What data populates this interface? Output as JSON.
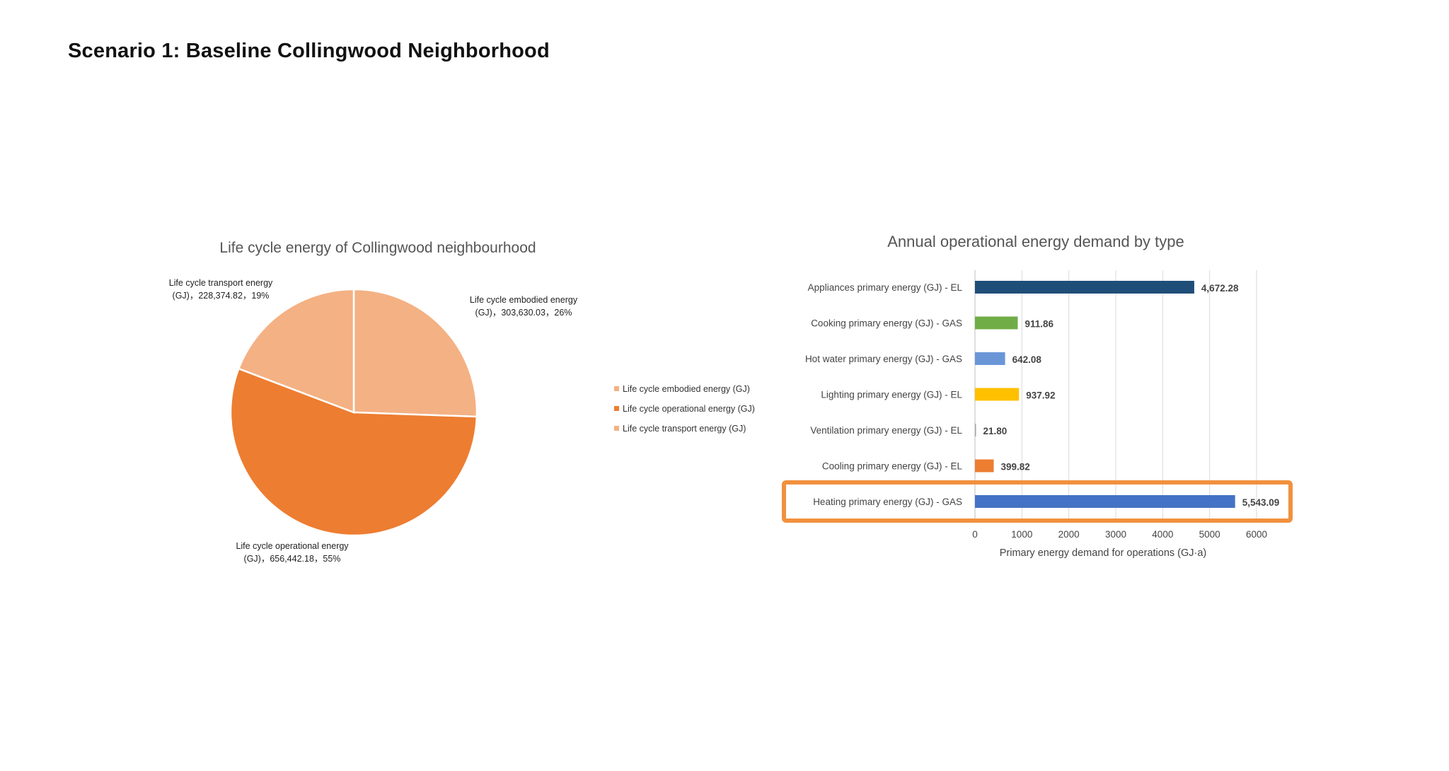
{
  "page": {
    "title": "Scenario 1: Baseline Collingwood Neighborhood"
  },
  "chart_data": [
    {
      "type": "pie",
      "title": "Life cycle energy of Collingwood neighbourhood",
      "slices": [
        {
          "name": "Life cycle embodied energy (GJ)",
          "value": 303630.03,
          "percent": 26,
          "color": "#F4B183",
          "label_lines": [
            "Life cycle embodied energy",
            "(GJ)，303,630.03，26%"
          ]
        },
        {
          "name": "Life cycle operational energy (GJ)",
          "value": 656442.18,
          "percent": 55,
          "color": "#ED7D31",
          "label_lines": [
            "Life cycle operational energy",
            "(GJ)，656,442.18，55%"
          ]
        },
        {
          "name": "Life cycle transport energy (GJ)",
          "value": 228374.82,
          "percent": 19,
          "color": "#F4B183",
          "label_lines": [
            "Life cycle transport energy",
            "(GJ)，228,374.82，19%"
          ]
        }
      ],
      "legend_position": "right"
    },
    {
      "type": "bar",
      "orientation": "horizontal",
      "title": "Annual operational energy demand by type",
      "xlabel": "Primary energy demand for operations (GJ·a)",
      "xlim": [
        0,
        6000
      ],
      "xticks": [
        0,
        1000,
        2000,
        3000,
        4000,
        5000,
        6000
      ],
      "grid": true,
      "highlighted_category": "Heating primary energy (GJ) - GAS",
      "highlight_color": "#F0913E",
      "categories": [
        {
          "name": "Appliances primary energy (GJ) - EL",
          "value": 4672.28,
          "label": "4,672.28",
          "color": "#1F4E79"
        },
        {
          "name": "Cooking primary energy (GJ) - GAS",
          "value": 911.86,
          "label": "911.86",
          "color": "#70AD47"
        },
        {
          "name": "Hot water primary energy (GJ) - GAS",
          "value": 642.08,
          "label": "642.08",
          "color": "#6A96D8"
        },
        {
          "name": "Lighting primary energy (GJ) - EL",
          "value": 937.92,
          "label": "937.92",
          "color": "#FFC000"
        },
        {
          "name": "Ventilation primary energy (GJ) - EL",
          "value": 21.8,
          "label": "21.80",
          "color": "#A5A5A5"
        },
        {
          "name": "Cooling primary energy (GJ) - EL",
          "value": 399.82,
          "label": "399.82",
          "color": "#ED7D31"
        },
        {
          "name": "Heating primary energy (GJ) - GAS",
          "value": 5543.09,
          "label": "5,543.09",
          "color": "#4472C4"
        }
      ]
    }
  ]
}
